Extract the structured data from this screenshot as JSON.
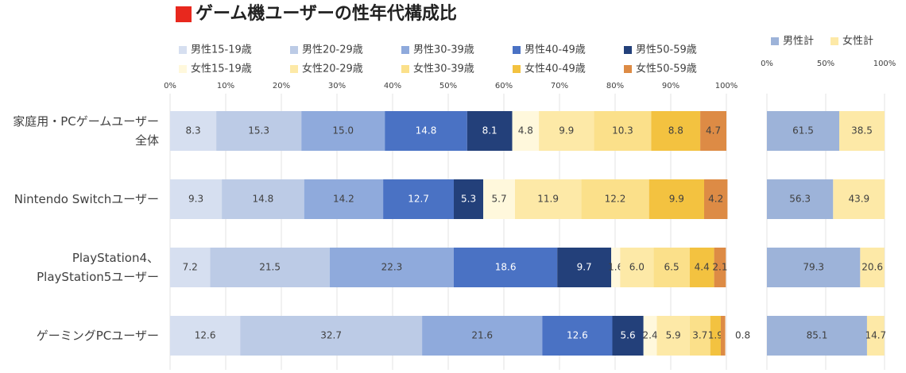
{
  "chart_data": [
    {
      "type": "bar",
      "orientation": "horizontal",
      "stacked": true,
      "title": "ゲーム機ユーザーの性年代構成比",
      "categories": [
        "家庭用・PCゲームユーザー\n全体",
        "Nintendo Switchユーザー",
        "PlayStation4、\nPlayStation5ユーザー",
        "ゲーミングPCユーザー"
      ],
      "xlim": [
        0,
        100
      ],
      "xticks": [
        {
          "value": 0,
          "label": "0%"
        },
        {
          "value": 10,
          "label": "10%"
        },
        {
          "value": 20,
          "label": "20%"
        },
        {
          "value": 30,
          "label": "30%"
        },
        {
          "value": 40,
          "label": "40%"
        },
        {
          "value": 50,
          "label": "50%"
        },
        {
          "value": 60,
          "label": "60%"
        },
        {
          "value": 70,
          "label": "70%"
        },
        {
          "value": 80,
          "label": "80%"
        },
        {
          "value": 90,
          "label": "90%"
        },
        {
          "value": 100,
          "label": "100%"
        }
      ],
      "grid": true,
      "series": [
        {
          "name": "男性15-19歳",
          "color": "#d6dff0",
          "values": [
            8.3,
            9.3,
            7.2,
            12.6
          ],
          "value_labels": [
            "8.3",
            "9.3",
            "7.2",
            "12.6"
          ]
        },
        {
          "name": "男性20-29歳",
          "color": "#bccbe6",
          "values": [
            15.3,
            14.8,
            21.5,
            32.7
          ],
          "value_labels": [
            "15.3",
            "14.8",
            "21.5",
            "32.7"
          ]
        },
        {
          "name": "男性30-39歳",
          "color": "#8faadc",
          "values": [
            15.0,
            14.2,
            22.3,
            21.6
          ],
          "value_labels": [
            "15.0",
            "14.2",
            "22.3",
            "21.6"
          ]
        },
        {
          "name": "男性40-49歳",
          "color": "#4a72c4",
          "values": [
            14.8,
            12.7,
            18.6,
            12.6
          ],
          "value_labels": [
            "14.8",
            "12.7",
            "18.6",
            "12.6"
          ]
        },
        {
          "name": "男性50-59歳",
          "color": "#23407a",
          "values": [
            8.1,
            5.3,
            9.7,
            5.6
          ],
          "value_labels": [
            "8.1",
            "5.3",
            "9.7",
            "5.6"
          ]
        },
        {
          "name": "女性15-19歳",
          "color": "#fff8dc",
          "values": [
            4.8,
            5.7,
            1.6,
            2.4
          ],
          "value_labels": [
            "4.8",
            "5.7",
            "1.6",
            "2.4"
          ]
        },
        {
          "name": "女性20-29歳",
          "color": "#fde9a7",
          "values": [
            9.9,
            11.9,
            6.0,
            5.9
          ],
          "value_labels": [
            "9.9",
            "11.9",
            "6.0",
            "5.9"
          ]
        },
        {
          "name": "女性30-39歳",
          "color": "#fbe08a",
          "values": [
            10.3,
            12.2,
            6.5,
            3.7
          ],
          "value_labels": [
            "10.3",
            "12.2",
            "6.5",
            "3.7"
          ]
        },
        {
          "name": "女性40-49歳",
          "color": "#f3c240",
          "values": [
            8.8,
            9.9,
            4.4,
            1.9
          ],
          "value_labels": [
            "8.8",
            "9.9",
            "4.4",
            "1.9"
          ]
        },
        {
          "name": "女性50-59歳",
          "color": "#dd8b45",
          "values": [
            4.7,
            4.2,
            2.1,
            0.8
          ],
          "value_labels": [
            "4.7",
            "4.2",
            "2.1",
            "0.8"
          ]
        }
      ]
    },
    {
      "type": "bar",
      "orientation": "horizontal",
      "stacked": true,
      "xlim": [
        0,
        100
      ],
      "xticks": [
        {
          "value": 0,
          "label": "0%"
        },
        {
          "value": 50,
          "label": "50%"
        },
        {
          "value": 100,
          "label": "100%"
        }
      ],
      "grid": true,
      "series": [
        {
          "name": "男性計",
          "color": "#9db3d9",
          "values": [
            61.5,
            56.3,
            79.3,
            85.1
          ]
        },
        {
          "name": "女性計",
          "color": "#fde9a7",
          "values": [
            38.5,
            43.9,
            20.6,
            14.7
          ]
        }
      ]
    }
  ]
}
